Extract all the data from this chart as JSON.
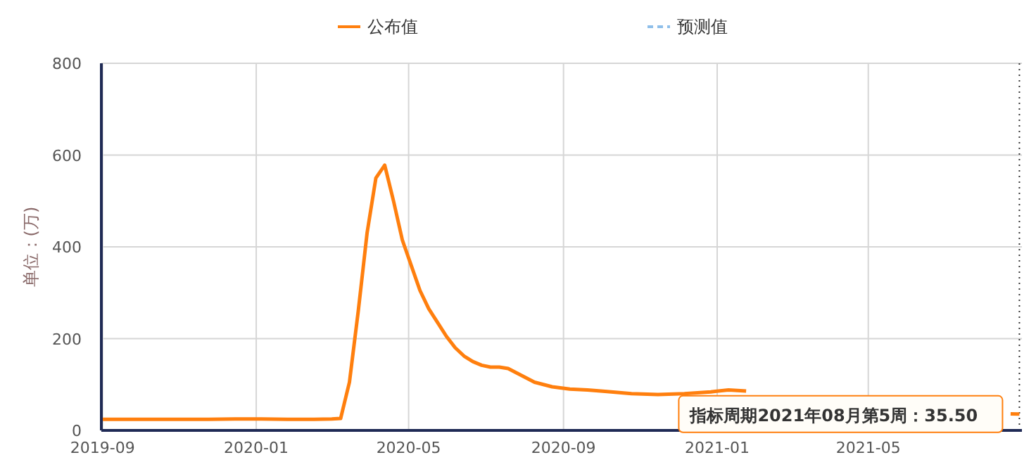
{
  "chart_data": {
    "type": "line",
    "ylabel": "单位：(万)",
    "x": [
      "2019-09-01",
      "2019-09-22",
      "2019-10-13",
      "2019-11-03",
      "2019-11-24",
      "2019-12-15",
      "2020-01-05",
      "2020-01-26",
      "2020-02-16",
      "2020-03-01",
      "2020-03-08",
      "2020-03-15",
      "2020-03-22",
      "2020-03-29",
      "2020-04-05",
      "2020-04-12",
      "2020-04-19",
      "2020-04-26",
      "2020-05-03",
      "2020-05-10",
      "2020-05-17",
      "2020-05-24",
      "2020-05-31",
      "2020-06-07",
      "2020-06-14",
      "2020-06-21",
      "2020-06-28",
      "2020-07-05",
      "2020-07-12",
      "2020-07-19",
      "2020-07-26",
      "2020-08-02",
      "2020-08-09",
      "2020-08-16",
      "2020-08-23",
      "2020-09-06",
      "2020-09-20",
      "2020-10-04",
      "2020-10-25",
      "2020-11-15",
      "2020-12-06",
      "2020-12-27",
      "2021-01-10",
      "2021-01-24",
      "2021-02-07",
      "2021-03-07",
      "2021-04-04",
      "2021-05-02",
      "2021-06-06",
      "2021-07-04",
      "2021-08-01",
      "2021-08-22",
      "2021-08-29"
    ],
    "series": [
      {
        "name": "公布值",
        "color": "#ff7f0e",
        "values": [
          24,
          24,
          24,
          24,
          24,
          25,
          25,
          24,
          24,
          25,
          26,
          105,
          260,
          430,
          550,
          578,
          500,
          415,
          360,
          305,
          265,
          235,
          205,
          180,
          162,
          150,
          142,
          138,
          138,
          135,
          125,
          115,
          105,
          100,
          95,
          90,
          88,
          85,
          80,
          78,
          80,
          84,
          88,
          86,
          null,
          null,
          null,
          null,
          null,
          null,
          null,
          36,
          35.5
        ]
      },
      {
        "name": "预测值",
        "color": "#8fbfea",
        "line_style": "dashed",
        "values": [
          null,
          null,
          null,
          null,
          null,
          null,
          null,
          null,
          null,
          null,
          null,
          null,
          null,
          null,
          null,
          null,
          null,
          null,
          null,
          null,
          null,
          null,
          null,
          null,
          null,
          null,
          null,
          null,
          null,
          null,
          null,
          null,
          null,
          null,
          null,
          null,
          null,
          null,
          null,
          null,
          null,
          null,
          null,
          null,
          null,
          null,
          null,
          null,
          null,
          null,
          null,
          null,
          null
        ]
      }
    ],
    "xlim": [
      "2019-08-31",
      "2021-08-31"
    ],
    "xticks": [
      {
        "value": "2019-09-01",
        "label": "2019-09"
      },
      {
        "value": "2020-01-01",
        "label": "2020-01"
      },
      {
        "value": "2020-05-01",
        "label": "2020-05"
      },
      {
        "value": "2020-09-01",
        "label": "2020-09"
      },
      {
        "value": "2021-01-01",
        "label": "2021-01"
      },
      {
        "value": "2021-05-01",
        "label": "2021-05"
      }
    ],
    "ylim": [
      0,
      800
    ],
    "yticks": [
      0,
      200,
      400,
      600,
      800
    ],
    "grid": true,
    "legend": "top",
    "ref_lines": [
      {
        "axis": "x",
        "value": "2021-08-29",
        "label": null,
        "color": "#333333",
        "line_style": "dotted"
      }
    ],
    "annotations": [
      {
        "text": "指标周期2021年08月第5周：35.50",
        "x": "2021-08-29",
        "y": 35.5
      }
    ]
  }
}
